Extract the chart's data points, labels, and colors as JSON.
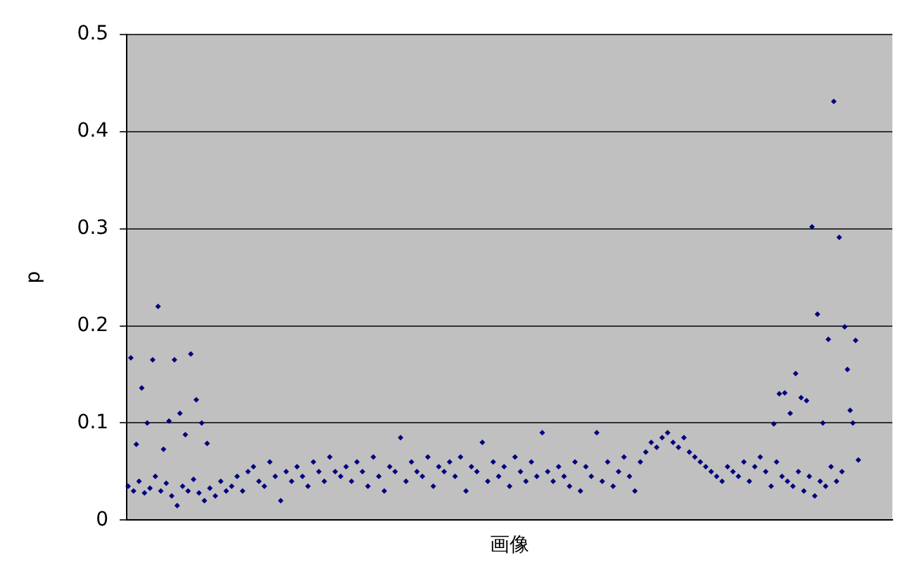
{
  "chart_data": {
    "type": "scatter",
    "xlabel": "画像",
    "ylabel": "p",
    "categories": [
      null,
      null,
      null,
      null,
      null,
      null,
      null,
      null,
      null,
      null,
      null,
      null,
      null,
      null,
      null,
      null,
      null,
      null,
      null,
      null,
      null,
      null,
      null,
      null,
      null,
      null,
      null,
      null,
      null,
      null,
      null,
      null,
      null,
      null,
      null,
      null,
      null,
      null,
      null,
      null,
      null,
      null,
      null,
      null,
      null,
      null,
      null,
      null,
      null,
      null,
      null,
      null,
      null,
      null,
      null,
      null,
      null,
      null,
      null,
      null,
      null,
      null,
      null,
      null,
      null,
      null,
      null,
      null,
      null,
      null,
      null,
      null,
      null,
      null,
      null,
      null,
      null,
      null,
      null,
      null,
      null,
      null,
      null,
      null,
      null,
      null,
      null,
      null,
      null,
      null,
      null,
      null,
      null,
      null,
      null,
      null,
      null,
      null,
      null,
      null,
      null,
      null,
      null,
      null,
      null,
      null,
      null,
      null,
      null,
      null,
      null,
      null,
      null,
      null,
      null,
      null,
      null,
      null,
      null,
      null,
      null,
      null,
      null,
      null,
      null,
      null,
      null,
      null,
      null,
      null,
      null,
      null,
      null,
      null,
      null,
      null,
      null,
      null,
      null,
      null,
      null,
      null,
      null,
      null,
      null,
      null,
      null,
      null,
      null,
      null,
      null,
      null,
      null,
      null,
      null,
      null,
      null,
      null,
      null,
      null,
      null,
      null,
      null,
      null,
      null,
      null,
      null,
      null,
      null,
      null,
      null,
      null,
      null,
      null,
      null,
      null,
      null,
      null,
      null,
      null,
      null,
      null,
      null,
      null,
      null,
      null,
      null,
      null,
      null,
      null,
      null,
      null,
      null,
      null,
      null,
      null,
      null,
      null,
      null,
      null,
      null,
      null,
      null,
      null,
      null,
      null,
      null,
      null,
      null,
      null,
      null,
      null,
      null,
      null,
      null,
      null,
      null,
      null,
      null,
      null,
      null,
      null,
      null,
      null,
      null,
      null,
      null,
      null,
      null,
      null,
      null,
      null,
      null,
      null,
      null,
      null,
      null,
      null,
      null,
      null,
      null,
      null,
      null,
      null,
      null,
      null,
      null,
      null,
      null,
      null,
      null,
      null,
      null,
      null,
      null,
      null,
      null,
      null,
      null,
      null,
      null,
      null,
      null,
      null,
      null,
      null,
      null,
      null,
      null,
      null,
      null,
      null,
      null,
      null,
      null,
      null,
      null,
      null,
      null,
      null,
      null
    ],
    "series": [
      {
        "color": "#000080",
        "values": [
          0.035,
          0.167,
          0.03,
          0.078,
          0.04,
          0.136,
          0.028,
          0.1,
          0.033,
          0.165,
          0.045,
          0.22,
          0.03,
          0.073,
          0.038,
          0.102,
          0.025,
          0.165,
          0.015,
          0.11,
          0.035,
          0.088,
          0.03,
          0.171,
          0.042,
          0.124,
          0.028,
          0.1,
          0.02,
          0.079,
          0.033,
          null,
          0.025,
          null,
          0.04,
          null,
          0.03,
          null,
          0.035,
          null,
          0.045,
          null,
          0.03,
          null,
          0.05,
          null,
          0.055,
          null,
          0.04,
          null,
          0.035,
          null,
          0.06,
          null,
          0.045,
          null,
          0.02,
          null,
          0.05,
          null,
          0.04,
          null,
          0.055,
          null,
          0.045,
          null,
          0.035,
          null,
          0.06,
          null,
          0.05,
          null,
          0.04,
          null,
          0.065,
          null,
          0.05,
          null,
          0.045,
          null,
          0.055,
          null,
          0.04,
          null,
          0.06,
          null,
          0.05,
          null,
          0.035,
          null,
          0.065,
          null,
          0.045,
          null,
          0.03,
          null,
          0.055,
          null,
          0.05,
          null,
          0.085,
          null,
          0.04,
          null,
          0.06,
          null,
          0.05,
          null,
          0.045,
          null,
          0.065,
          null,
          0.035,
          null,
          0.055,
          null,
          0.05,
          null,
          0.06,
          null,
          0.045,
          null,
          0.065,
          null,
          0.03,
          null,
          0.055,
          null,
          0.05,
          null,
          0.08,
          null,
          0.04,
          null,
          0.06,
          null,
          0.045,
          null,
          0.055,
          null,
          0.035,
          null,
          0.065,
          null,
          0.05,
          null,
          0.04,
          null,
          0.06,
          null,
          0.045,
          null,
          0.09,
          null,
          0.05,
          null,
          0.04,
          null,
          0.055,
          null,
          0.045,
          null,
          0.035,
          null,
          0.06,
          null,
          0.03,
          null,
          0.055,
          null,
          0.045,
          null,
          0.09,
          null,
          0.04,
          null,
          0.06,
          null,
          0.035,
          null,
          0.05,
          null,
          0.065,
          null,
          0.045,
          null,
          0.03,
          null,
          0.06,
          null,
          0.07,
          null,
          0.08,
          null,
          0.075,
          null,
          0.085,
          null,
          0.09,
          null,
          0.08,
          null,
          0.075,
          null,
          0.085,
          null,
          0.07,
          null,
          0.065,
          null,
          0.06,
          null,
          0.055,
          null,
          0.05,
          null,
          0.045,
          null,
          0.04,
          null,
          0.055,
          null,
          0.05,
          null,
          0.045,
          null,
          0.06,
          null,
          0.04,
          null,
          0.055,
          null,
          0.065,
          null,
          0.05,
          null,
          0.035,
          0.099,
          0.06,
          0.13,
          0.045,
          0.131,
          0.04,
          0.11,
          0.035,
          0.151,
          0.05,
          0.126,
          0.03,
          0.123,
          0.045,
          0.302,
          0.025,
          0.212,
          0.04,
          0.1,
          0.035,
          0.186,
          0.055,
          0.431,
          0.04,
          0.291,
          0.05,
          0.199,
          0.155,
          0.113,
          0.1,
          0.185,
          0.062,
          null,
          null,
          null,
          null,
          null,
          null,
          null,
          null,
          null,
          null,
          null,
          null
        ]
      }
    ],
    "marker": "diamond",
    "ylim": [
      0,
      0.5
    ],
    "yticks": [
      0,
      0.1,
      0.2,
      0.3,
      0.4,
      0.5
    ],
    "grid": "y",
    "tick_labels": "y",
    "legend": false
  }
}
